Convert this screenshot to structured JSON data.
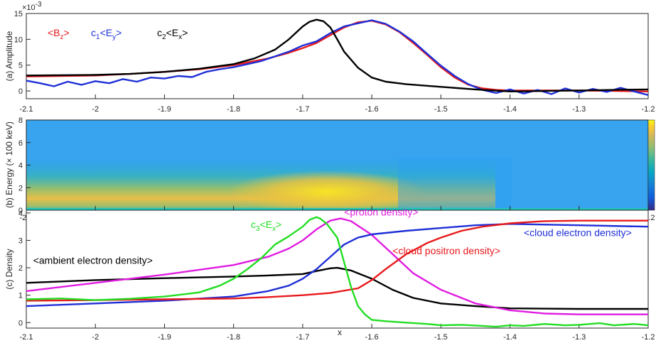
{
  "chart_data": [
    {
      "type": "line",
      "panel": "a",
      "ylabel": "(a) Amplitude",
      "exponent_label": "×10",
      "exponent_power": "-3",
      "xlim": [
        -2.1,
        -1.2
      ],
      "ylim": [
        -1.5,
        15
      ],
      "yticks": [
        0,
        5,
        10,
        15
      ],
      "xticks": [
        -2.1,
        -2,
        -1.9,
        -1.8,
        -1.7,
        -1.6,
        -1.5,
        -1.4,
        -1.3,
        -1.2
      ],
      "xtick_labels": [
        "-2.1",
        "-2",
        "-1.9",
        "-1.8",
        "-1.7",
        "-1.6",
        "-1.5",
        "-1.4",
        "-1.3",
        "-1.2"
      ],
      "legend": [
        {
          "pre": "<B",
          "sub": "z",
          "post": ">",
          "color": "#e8191c"
        },
        {
          "pre": "c",
          "sub": "1",
          "mid": "<E",
          "sub2": "y",
          "post": ">",
          "color": "#1f2fd6"
        },
        {
          "pre": "c",
          "sub": "2",
          "mid": "<E",
          "sub2": "x",
          "post": ">",
          "color": "#000000"
        }
      ],
      "series": [
        {
          "color": "#e8191c",
          "x": [
            -2.1,
            -2.0,
            -1.95,
            -1.9,
            -1.85,
            -1.8,
            -1.75,
            -1.72,
            -1.7,
            -1.68,
            -1.66,
            -1.64,
            -1.62,
            -1.6,
            -1.58,
            -1.56,
            -1.54,
            -1.52,
            -1.5,
            -1.48,
            -1.46,
            -1.44,
            -1.42,
            -1.4,
            -1.35,
            -1.3,
            -1.25,
            -1.2
          ],
          "y": [
            2.8,
            3.0,
            3.3,
            3.7,
            4.2,
            5.0,
            6.3,
            7.4,
            8.3,
            9.3,
            10.8,
            12.3,
            13.3,
            13.6,
            12.9,
            11.4,
            9.3,
            7.0,
            4.6,
            2.6,
            1.2,
            0.5,
            0.2,
            0.1,
            0.1,
            0.1,
            0.0,
            -0.1
          ]
        },
        {
          "color": "#1f2fd6",
          "x": [
            -2.1,
            -2.08,
            -2.06,
            -2.04,
            -2.02,
            -2.0,
            -1.98,
            -1.96,
            -1.94,
            -1.92,
            -1.9,
            -1.88,
            -1.86,
            -1.84,
            -1.82,
            -1.8,
            -1.78,
            -1.76,
            -1.74,
            -1.72,
            -1.7,
            -1.68,
            -1.66,
            -1.64,
            -1.62,
            -1.6,
            -1.58,
            -1.56,
            -1.54,
            -1.52,
            -1.5,
            -1.48,
            -1.46,
            -1.44,
            -1.42,
            -1.4,
            -1.38,
            -1.36,
            -1.34,
            -1.32,
            -1.3,
            -1.28,
            -1.26,
            -1.24,
            -1.22,
            -1.2
          ],
          "y": [
            2.0,
            1.5,
            0.9,
            1.8,
            1.2,
            1.9,
            1.5,
            2.3,
            1.8,
            2.6,
            2.4,
            2.9,
            2.7,
            3.7,
            4.2,
            4.6,
            5.2,
            5.8,
            6.7,
            7.6,
            8.8,
            9.6,
            11.2,
            12.5,
            13.1,
            13.7,
            13.0,
            11.5,
            9.6,
            7.2,
            4.9,
            2.9,
            1.3,
            0.2,
            -0.4,
            0.3,
            -0.5,
            0.2,
            -0.6,
            0.5,
            -0.3,
            0.4,
            -0.2,
            0.6,
            -0.1,
            -0.8
          ]
        },
        {
          "color": "#000000",
          "x": [
            -2.1,
            -2.0,
            -1.95,
            -1.9,
            -1.85,
            -1.8,
            -1.77,
            -1.74,
            -1.72,
            -1.7,
            -1.69,
            -1.68,
            -1.67,
            -1.66,
            -1.65,
            -1.64,
            -1.62,
            -1.6,
            -1.58,
            -1.55,
            -1.5,
            -1.45,
            -1.4,
            -1.35,
            -1.3,
            -1.25,
            -1.2
          ],
          "y": [
            3.0,
            3.1,
            3.3,
            3.7,
            4.3,
            5.2,
            6.3,
            8.0,
            10.0,
            12.5,
            13.4,
            13.8,
            13.5,
            12.3,
            10.0,
            7.6,
            4.5,
            2.6,
            1.8,
            1.3,
            0.8,
            0.3,
            -0.1,
            0.0,
            0.1,
            0.2,
            0.3
          ]
        }
      ]
    },
    {
      "type": "heatmap",
      "panel": "b",
      "ylabel": "(b) Energy (× 100 keV)",
      "xlim": [
        -2.1,
        -1.2
      ],
      "ylim": [
        0,
        8
      ],
      "yticks": [
        0,
        2,
        4,
        6,
        8
      ],
      "xticks": [
        -2.1,
        -2,
        -1.9,
        -1.8,
        -1.7,
        -1.6,
        -1.5,
        -1.4,
        -1.3,
        -1.2
      ],
      "xtick_labels": [
        "-2.1",
        "-2",
        "-1.9",
        "-1.8",
        "-1.7",
        "-1.6",
        "-1.5",
        "-1.4",
        "-1.3",
        "-1.2"
      ],
      "colormap": "parula",
      "colorbar": true,
      "peak": {
        "x": -1.68,
        "energy": 1.2
      },
      "fade_out_x": -1.5
    },
    {
      "type": "line",
      "panel": "c",
      "ylabel": "(c) Density",
      "xlabel": "x",
      "xlim": [
        -2.1,
        -1.2
      ],
      "ylim": [
        -0.2,
        4.1
      ],
      "yticks": [
        0,
        1,
        2,
        3,
        4
      ],
      "xticks": [
        -2.1,
        -2,
        -1.9,
        -1.8,
        -1.7,
        -1.6,
        -1.5,
        -1.4,
        -1.3,
        -1.2
      ],
      "xtick_labels": [
        "-2.1",
        "-2",
        "-1.9",
        "-1.8",
        "-1.7",
        "-1.6",
        "-1.5",
        "-1.4",
        "-1.3",
        "-1.2"
      ],
      "annotations": [
        {
          "text": "<ambient electron density>",
          "color": "#000000",
          "x": -2.09,
          "y": 2.15
        },
        {
          "text": "<proton density>",
          "color": "#e01ce0",
          "x": -1.64,
          "y": 3.9
        },
        {
          "text": "<cloud electron density>",
          "color": "#1f2fd6",
          "x": -1.38,
          "y": 3.15
        },
        {
          "text": "<cloud positron density>",
          "color": "#e8191c",
          "x": -1.57,
          "y": 2.5
        },
        {
          "pre": "c",
          "sub": "3",
          "mid": "<E",
          "sub2": "x",
          "post": ">",
          "color": "#22dd22",
          "x": -1.775,
          "y": 3.45
        }
      ],
      "series": [
        {
          "color": "#000000",
          "x": [
            -2.1,
            -2.0,
            -1.9,
            -1.8,
            -1.75,
            -1.7,
            -1.68,
            -1.66,
            -1.65,
            -1.63,
            -1.6,
            -1.57,
            -1.54,
            -1.5,
            -1.45,
            -1.4,
            -1.3,
            -1.2
          ],
          "y": [
            1.45,
            1.55,
            1.62,
            1.68,
            1.72,
            1.77,
            1.88,
            1.98,
            2.0,
            1.9,
            1.6,
            1.2,
            0.9,
            0.7,
            0.6,
            0.52,
            0.5,
            0.5
          ]
        },
        {
          "color": "#e01ce0",
          "x": [
            -2.1,
            -2.0,
            -1.9,
            -1.8,
            -1.75,
            -1.72,
            -1.7,
            -1.68,
            -1.66,
            -1.645,
            -1.63,
            -1.6,
            -1.57,
            -1.54,
            -1.5,
            -1.45,
            -1.4,
            -1.35,
            -1.3,
            -1.2
          ],
          "y": [
            1.15,
            1.45,
            1.75,
            2.1,
            2.4,
            2.7,
            3.0,
            3.4,
            3.72,
            3.8,
            3.7,
            3.2,
            2.5,
            1.8,
            1.2,
            0.7,
            0.45,
            0.33,
            0.3,
            0.3
          ]
        },
        {
          "color": "#1f2fd6",
          "x": [
            -2.1,
            -2.0,
            -1.9,
            -1.8,
            -1.75,
            -1.72,
            -1.7,
            -1.68,
            -1.66,
            -1.64,
            -1.62,
            -1.6,
            -1.55,
            -1.5,
            -1.45,
            -1.4,
            -1.3,
            -1.2
          ],
          "y": [
            0.6,
            0.7,
            0.8,
            0.95,
            1.15,
            1.35,
            1.6,
            1.95,
            2.4,
            2.85,
            3.1,
            3.22,
            3.35,
            3.45,
            3.55,
            3.6,
            3.55,
            3.5
          ]
        },
        {
          "color": "#e8191c",
          "x": [
            -2.1,
            -2.0,
            -1.9,
            -1.8,
            -1.75,
            -1.7,
            -1.66,
            -1.62,
            -1.6,
            -1.58,
            -1.55,
            -1.52,
            -1.5,
            -1.47,
            -1.44,
            -1.4,
            -1.35,
            -1.3,
            -1.2
          ],
          "y": [
            0.8,
            0.82,
            0.85,
            0.88,
            0.93,
            1.0,
            1.08,
            1.25,
            1.55,
            1.95,
            2.5,
            2.9,
            3.1,
            3.35,
            3.5,
            3.62,
            3.7,
            3.72,
            3.72
          ]
        },
        {
          "color": "#22dd22",
          "x": [
            -2.1,
            -2.05,
            -2.0,
            -1.95,
            -1.9,
            -1.85,
            -1.82,
            -1.8,
            -1.78,
            -1.76,
            -1.74,
            -1.72,
            -1.7,
            -1.69,
            -1.68,
            -1.675,
            -1.665,
            -1.65,
            -1.64,
            -1.63,
            -1.62,
            -1.61,
            -1.6,
            -1.58,
            -1.55,
            -1.52,
            -1.5,
            -1.47,
            -1.44,
            -1.42,
            -1.4,
            -1.38,
            -1.35,
            -1.32,
            -1.3,
            -1.27,
            -1.25,
            -1.22,
            -1.2
          ],
          "y": [
            0.85,
            0.88,
            0.82,
            0.87,
            0.95,
            1.1,
            1.35,
            1.6,
            1.95,
            2.35,
            2.85,
            3.15,
            3.5,
            3.75,
            3.85,
            3.8,
            3.6,
            3.1,
            2.2,
            1.3,
            0.6,
            0.3,
            0.1,
            0.05,
            0.0,
            -0.05,
            -0.1,
            -0.08,
            -0.12,
            -0.15,
            -0.1,
            -0.12,
            -0.05,
            -0.1,
            -0.08,
            -0.02,
            -0.1,
            -0.05,
            -0.1
          ]
        }
      ]
    }
  ]
}
